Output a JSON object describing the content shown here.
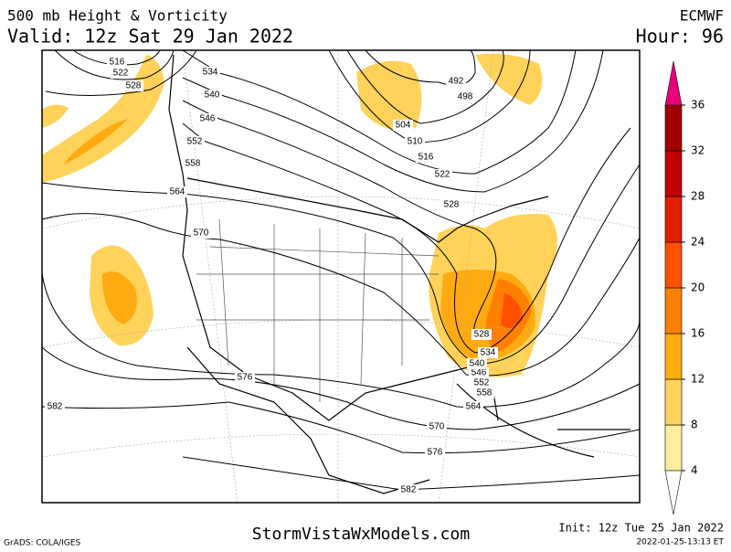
{
  "header": {
    "title": "500 mb Height & Vorticity",
    "model": "ECMWF",
    "valid": "Valid: 12z Sat 29 Jan 2022",
    "hour": "Hour: 96"
  },
  "colorbar": {
    "ticks": [
      4,
      8,
      12,
      16,
      20,
      24,
      28,
      32,
      36
    ],
    "colors": [
      "#fff09a",
      "#ffd25a",
      "#ffaa10",
      "#ff8000",
      "#ff5000",
      "#e01e00",
      "#c00000",
      "#a00000"
    ],
    "over_color": "#e8007a",
    "under_color": "#ffffff"
  },
  "contour_labels": [
    "516",
    "522",
    "528",
    "534",
    "540",
    "546",
    "552",
    "558",
    "564",
    "570",
    "576",
    "582",
    "582",
    "576",
    "570",
    "564",
    "558",
    "552",
    "546",
    "540",
    "534",
    "528",
    "492",
    "498",
    "504",
    "510",
    "516",
    "522",
    "528"
  ],
  "footer": {
    "credit": "GrADS: COLA/IGES",
    "site": "StormVistaWxModels.com",
    "init": "Init: 12z Tue 25 Jan 2022",
    "stamp": "2022-01-25-13:13 ET"
  }
}
